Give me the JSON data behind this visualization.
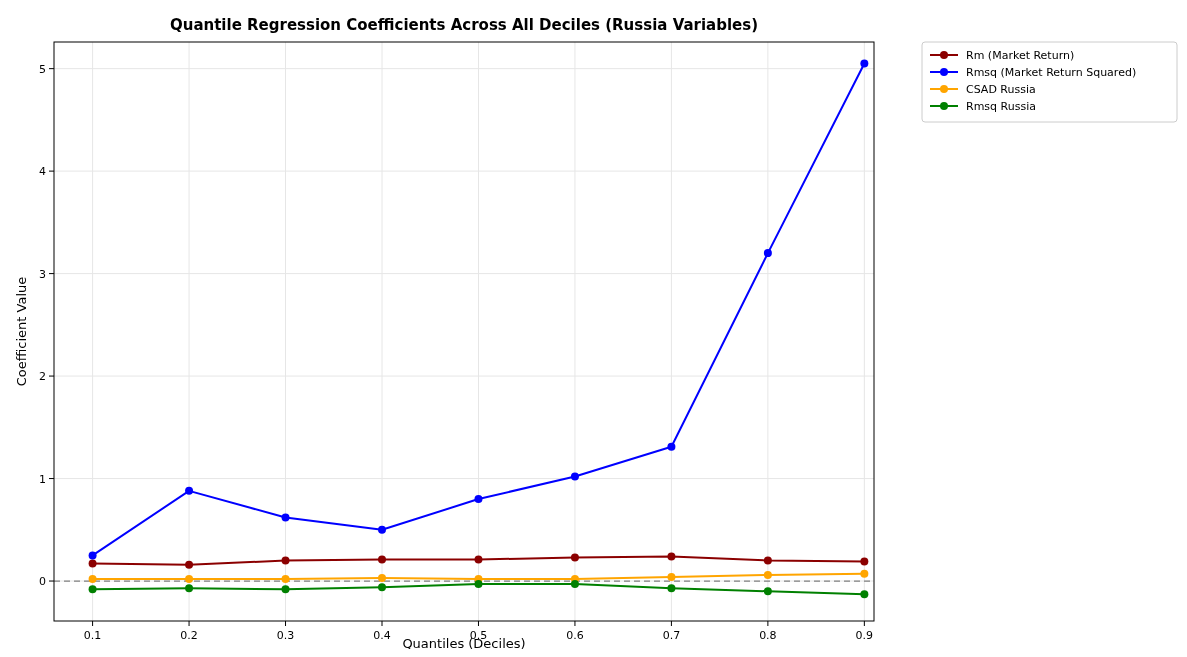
{
  "chart_data": {
    "type": "line",
    "title": "Quantile Regression Coefficients Across All Deciles (Russia Variables)",
    "xlabel": "Quantiles (Deciles)",
    "ylabel": "Coefficient Value",
    "x": [
      0.1,
      0.2,
      0.3,
      0.4,
      0.5,
      0.6,
      0.7,
      0.8,
      0.9
    ],
    "series": [
      {
        "name": "Rm (Market Return)",
        "color": "#8b0000",
        "values": [
          0.17,
          0.16,
          0.2,
          0.21,
          0.21,
          0.23,
          0.24,
          0.2,
          0.19
        ]
      },
      {
        "name": "Rmsq (Market Return Squared)",
        "color": "#0000ff",
        "values": [
          0.25,
          0.88,
          0.62,
          0.5,
          0.8,
          1.02,
          1.31,
          3.2,
          5.05
        ]
      },
      {
        "name": "CSAD Russia",
        "color": "#ffa500",
        "values": [
          0.02,
          0.02,
          0.02,
          0.03,
          0.02,
          0.02,
          0.04,
          0.06,
          0.07
        ]
      },
      {
        "name": "Rmsq Russia",
        "color": "#008000",
        "values": [
          -0.08,
          -0.07,
          -0.08,
          -0.06,
          -0.03,
          -0.03,
          -0.07,
          -0.1,
          -0.13
        ]
      }
    ],
    "xlim": [
      0.06,
      0.91
    ],
    "ylim": [
      -0.39,
      5.26
    ],
    "xticks": [
      0.1,
      0.2,
      0.3,
      0.4,
      0.5,
      0.6,
      0.7,
      0.8,
      0.9
    ],
    "yticks": [
      0,
      1,
      2,
      3,
      4,
      5
    ],
    "ref_lines": [
      {
        "axis": "y",
        "value": 0,
        "color": "#808080",
        "line_style": "dashed"
      }
    ],
    "grid": true,
    "legend": "top right",
    "marker": "circle",
    "line_style": "solid"
  }
}
